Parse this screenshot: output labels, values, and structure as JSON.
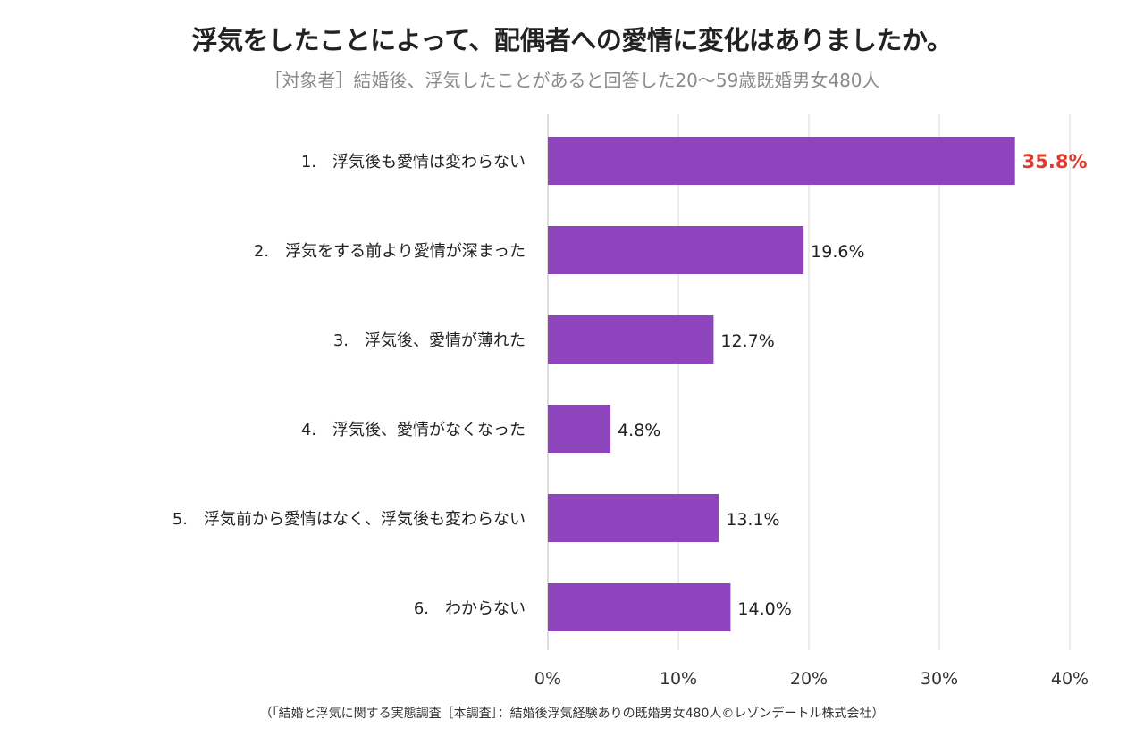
{
  "chart_data": {
    "type": "bar",
    "orientation": "horizontal",
    "title": "浮気をしたことによって、配偶者への愛情に変化はありましたか。",
    "subtitle": "［対象者］結婚後、浮気したことがあると回答した20～59歳既婚男女480人",
    "source": "（「結婚と浮気に関する実態調査［本調査］：結婚後浮気経験ありの既婚男女480人©レゾンデートル株式会社）",
    "categories": [
      "1.　浮気後も愛情は変わらない",
      "2.　浮気をする前より愛情が深まった",
      "3.　浮気後、愛情が薄れた",
      "4.　浮気後、愛情がなくなった",
      "5.　浮気前から愛情はなく、浮気後も変わらない",
      "6.　わからない"
    ],
    "values": [
      35.8,
      19.6,
      12.7,
      4.8,
      13.1,
      14.0
    ],
    "data_labels": [
      "35.8%",
      "19.6%",
      "12.7%",
      "4.8%",
      "13.1%",
      "14.0%"
    ],
    "xlim": [
      0,
      40
    ],
    "xticks": [
      0,
      10,
      20,
      30,
      40
    ],
    "xtick_labels": [
      "0%",
      "10%",
      "20%",
      "30%",
      "40%"
    ],
    "grid": true,
    "bar_color": "#8e44bd",
    "highlight_label_color": "#e03a2f",
    "highlight_index": 0
  }
}
